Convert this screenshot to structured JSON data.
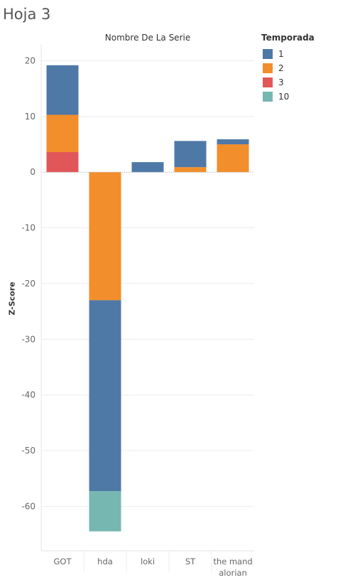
{
  "sheet": {
    "title": "Hoja 3"
  },
  "chart_data": {
    "type": "bar",
    "stacked": true,
    "column_header": "Nombre De La Serie",
    "ylabel": "Z-Score",
    "xlabel": "",
    "ylim": [
      -68,
      23
    ],
    "yticks": [
      20,
      10,
      0,
      -10,
      -20,
      -30,
      -40,
      -50,
      -60
    ],
    "grid": true,
    "legend": {
      "title": "Temporada",
      "position": "right"
    },
    "categories": [
      {
        "name": "GOT",
        "lines": [
          "GOT"
        ]
      },
      {
        "name": "hda",
        "lines": [
          "hda"
        ]
      },
      {
        "name": "loki",
        "lines": [
          "loki"
        ]
      },
      {
        "name": "ST",
        "lines": [
          "ST"
        ]
      },
      {
        "name": "the mandalorian",
        "lines": [
          "the mand",
          "alorian"
        ]
      }
    ],
    "series": [
      {
        "name": "3",
        "color": "#e15759",
        "values": [
          3.6,
          null,
          null,
          null,
          null
        ]
      },
      {
        "name": "2",
        "color": "#f28e2b",
        "values": [
          6.7,
          -23.0,
          null,
          0.9,
          5.0
        ]
      },
      {
        "name": "1",
        "color": "#4e79a7",
        "values": [
          8.9,
          -34.3,
          1.8,
          4.7,
          0.9
        ]
      },
      {
        "name": "10",
        "color": "#76b7b2",
        "values": [
          null,
          -7.2,
          null,
          null,
          null
        ]
      }
    ],
    "legend_order": [
      "1",
      "2",
      "3",
      "10"
    ]
  }
}
